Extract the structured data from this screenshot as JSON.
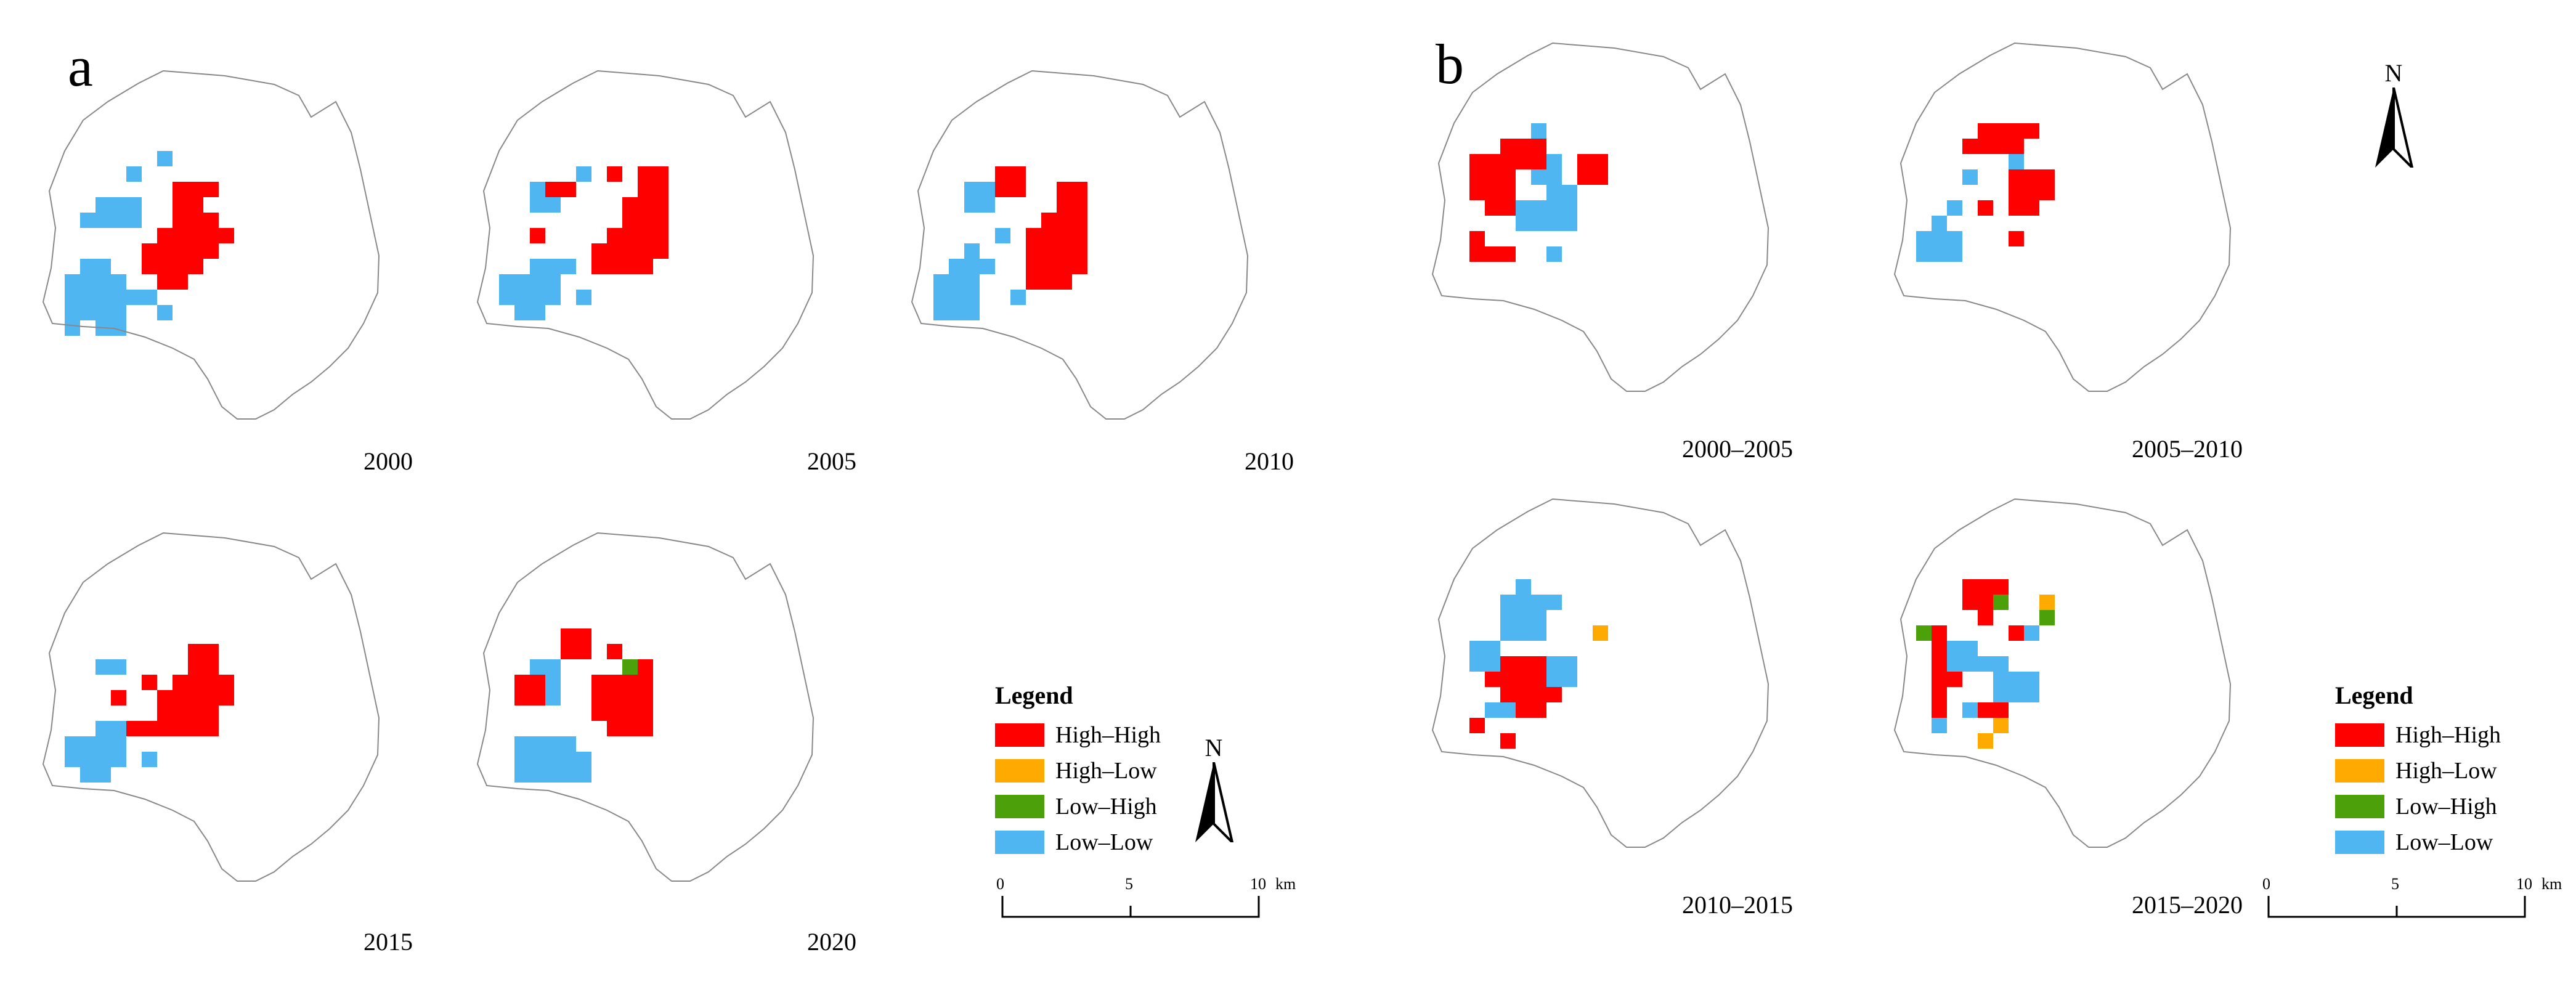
{
  "panels": [
    {
      "letter": "a",
      "maps": [
        {
          "year": "2000"
        },
        {
          "year": "2005"
        },
        {
          "year": "2010"
        },
        {
          "year": "2015"
        },
        {
          "year": "2020"
        }
      ]
    },
    {
      "letter": "b",
      "maps": [
        {
          "year": "2000–2005"
        },
        {
          "year": "2005–2010"
        },
        {
          "year": "2010–2015"
        },
        {
          "year": "2015–2020"
        }
      ]
    }
  ],
  "legend": {
    "title": "Legend",
    "items": [
      {
        "label": "High–High",
        "color": "#ff0000"
      },
      {
        "label": "High–Low",
        "color": "#ffaa00"
      },
      {
        "label": "Low–High",
        "color": "#4ca10a"
      },
      {
        "label": "Low–Low",
        "color": "#4fb6f2"
      }
    ]
  },
  "north_arrow": {
    "label": "N"
  },
  "scale_bar": {
    "ticks": [
      "0",
      "5",
      "10"
    ],
    "unit": "km"
  }
}
